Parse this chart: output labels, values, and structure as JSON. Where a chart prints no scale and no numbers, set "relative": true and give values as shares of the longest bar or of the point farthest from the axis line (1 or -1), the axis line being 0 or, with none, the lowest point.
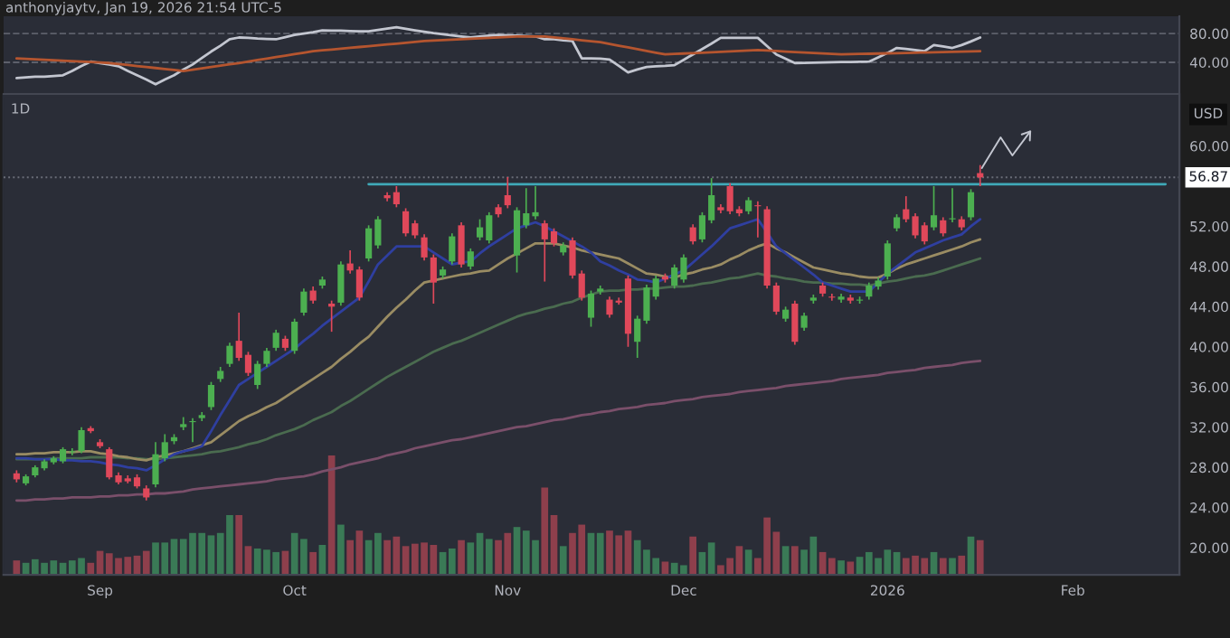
{
  "chart_data": [
    {
      "type": "line",
      "categories": [
        null,
        null,
        null,
        null,
        null,
        null,
        null,
        null,
        null,
        null,
        null,
        null,
        null,
        null,
        null,
        null,
        null,
        null,
        null,
        null,
        null,
        null,
        null,
        null,
        null,
        null,
        null,
        null,
        null,
        null,
        null,
        null,
        null,
        null,
        null,
        null,
        null,
        null,
        null,
        null,
        null,
        null,
        null,
        null,
        null,
        null,
        null,
        null,
        null,
        null,
        null,
        null,
        null,
        null,
        null,
        null,
        null,
        null,
        null,
        null,
        null,
        null,
        null,
        null,
        null,
        null,
        null,
        null,
        null,
        null,
        null,
        null,
        null,
        null,
        null,
        null,
        null,
        null,
        null,
        null,
        null,
        null,
        null,
        null,
        null,
        null,
        null,
        null,
        null,
        null,
        null,
        null,
        null,
        null,
        null,
        null,
        null,
        null,
        null,
        null,
        null,
        null,
        null,
        null,
        null,
        null,
        null,
        null,
        null,
        null,
        null,
        null,
        null,
        null,
        null,
        null,
        null,
        null,
        null,
        null,
        null,
        null,
        null,
        null,
        null,
        null
      ],
      "series": [
        {
          "color": "#c3c6d0",
          "values": [
            18,
            19,
            20,
            20,
            21,
            22,
            28,
            35,
            41,
            39,
            37,
            34.5,
            28,
            22,
            16,
            9.5,
            16,
            22,
            30,
            37,
            46,
            55,
            63,
            72,
            74.5,
            74,
            73,
            72.5,
            72,
            75,
            78,
            80,
            82,
            84.5,
            84,
            84,
            83.5,
            83,
            83,
            85,
            87,
            88.7,
            86.5,
            84.5,
            82.5,
            80.5,
            79,
            77.5,
            76,
            74.5,
            76,
            77,
            78,
            77.5,
            77,
            76.5,
            76,
            72,
            72,
            70.5,
            69.5,
            45.5,
            45.5,
            45,
            44,
            35,
            26,
            30,
            33.5,
            34.5,
            35,
            36,
            43.5,
            51,
            58.5,
            66,
            74,
            74,
            74,
            74,
            74,
            62.5,
            51,
            45,
            39,
            39.3,
            39.5,
            39.8,
            40,
            40.3,
            40.5,
            40.8,
            41,
            47,
            53,
            60,
            58.5,
            57,
            55.5,
            64,
            62,
            60,
            64,
            69,
            74.5,
            null,
            null,
            null,
            null,
            null,
            null,
            null,
            null,
            null,
            null,
            null,
            null,
            null,
            null,
            null,
            null,
            null,
            null,
            null,
            null,
            null
          ]
        },
        {
          "color": "#b5552f",
          "values": [
            45.5,
            44.9,
            44.2,
            43.6,
            42.9,
            42.3,
            41.6,
            41,
            40.3,
            39.7,
            39,
            37.6,
            36.3,
            34.9,
            33.5,
            32.1,
            30.8,
            29.4,
            28,
            29.8,
            31.7,
            33.5,
            35.3,
            37.2,
            39,
            41.1,
            43.1,
            45.2,
            47.3,
            49.3,
            51.4,
            53.4,
            55.5,
            56.7,
            57.8,
            59,
            60.2,
            61.3,
            62.5,
            63.7,
            64.8,
            66,
            67.2,
            68.3,
            69.5,
            70.2,
            70.8,
            71.5,
            72.1,
            72.8,
            73.4,
            74.1,
            74.7,
            75.4,
            76,
            76,
            76,
            76,
            74.7,
            73.3,
            72,
            70.7,
            69.3,
            68,
            65.6,
            63.1,
            60.7,
            58.3,
            55.9,
            53.4,
            51,
            51.6,
            52.2,
            52.8,
            53.4,
            54,
            54.6,
            55.2,
            55.8,
            56.4,
            57,
            56.3,
            55.7,
            55,
            54.3,
            53.7,
            53,
            52.3,
            51.7,
            51,
            51.3,
            51.6,
            51.9,
            52.2,
            52.5,
            52.8,
            53.1,
            53.4,
            53.7,
            54,
            54.3,
            54.6,
            54.9,
            55.2,
            55.5,
            null,
            null,
            null,
            null,
            null,
            null,
            null,
            null,
            null,
            null,
            null,
            null,
            null,
            null,
            null,
            null,
            null,
            null,
            null,
            null,
            null
          ]
        }
      ],
      "ylim": [
        -4,
        104
      ],
      "yticks": [
        {
          "value": 40,
          "label": "40.00"
        },
        {
          "value": 80,
          "label": "80.00"
        }
      ],
      "ref_lines": [
        {
          "axis": "y",
          "value": 40,
          "color": "#5d606b",
          "line_style": "dashed"
        },
        {
          "axis": "y",
          "value": 80,
          "color": "#5d606b",
          "line_style": "dashed"
        }
      ],
      "tick_labels": "y",
      "annotations": [
        "anthonyjaytv, Jan 19, 2026 21:54 UTC-5"
      ]
    },
    {
      "type": "candlestick",
      "subtitle": "1D",
      "annotations": [
        "USD"
      ],
      "categories": [
        null,
        null,
        null,
        null,
        null,
        null,
        null,
        null,
        null,
        "Sep",
        null,
        null,
        null,
        null,
        null,
        null,
        null,
        null,
        null,
        null,
        null,
        null,
        null,
        null,
        null,
        null,
        null,
        null,
        null,
        null,
        "Oct",
        null,
        null,
        null,
        null,
        null,
        null,
        null,
        null,
        null,
        null,
        null,
        null,
        null,
        null,
        null,
        null,
        null,
        null,
        null,
        null,
        null,
        null,
        "Nov",
        null,
        null,
        null,
        null,
        null,
        null,
        null,
        null,
        null,
        null,
        null,
        null,
        null,
        null,
        null,
        null,
        null,
        null,
        "Dec",
        null,
        null,
        null,
        null,
        null,
        null,
        null,
        null,
        null,
        null,
        null,
        null,
        null,
        null,
        null,
        null,
        null,
        null,
        null,
        null,
        null,
        "2026",
        null,
        null,
        null,
        null,
        null,
        null,
        null,
        null,
        null,
        null,
        null,
        null,
        null,
        null,
        null,
        null,
        null,
        null,
        null,
        "Feb",
        null,
        null,
        null,
        null,
        null,
        null,
        null,
        null,
        null,
        null,
        null
      ],
      "ohlc": [
        [
          27.4,
          27.7,
          26.5,
          26.8
        ],
        [
          26.4,
          27.3,
          26.2,
          27.1
        ],
        [
          27.2,
          28.2,
          27.0,
          28.0
        ],
        [
          27.9,
          28.8,
          27.7,
          28.6
        ],
        [
          28.5,
          29.1,
          28.3,
          28.9
        ],
        [
          28.6,
          30.0,
          28.4,
          29.8
        ],
        [
          29.5,
          29.9,
          29.2,
          29.6
        ],
        [
          29.6,
          32.0,
          29.4,
          31.7
        ],
        [
          31.9,
          32.1,
          31.4,
          31.6
        ],
        [
          30.5,
          30.8,
          29.9,
          30.1
        ],
        [
          29.8,
          30.0,
          26.8,
          27.0
        ],
        [
          27.2,
          27.5,
          26.3,
          26.5
        ],
        [
          26.9,
          27.2,
          26.4,
          26.6
        ],
        [
          27.0,
          27.3,
          25.9,
          26.1
        ],
        [
          25.9,
          26.2,
          24.7,
          25.0
        ],
        [
          26.3,
          30.5,
          26.0,
          29.3
        ],
        [
          28.9,
          31.3,
          28.6,
          30.5
        ],
        [
          30.6,
          31.3,
          30.3,
          31.0
        ],
        [
          32.0,
          33.0,
          31.7,
          32.3
        ],
        [
          32.5,
          32.9,
          30.5,
          32.6
        ],
        [
          32.9,
          33.5,
          32.6,
          33.2
        ],
        [
          34.0,
          36.5,
          33.7,
          36.2
        ],
        [
          36.8,
          38.0,
          36.5,
          37.6
        ],
        [
          38.3,
          40.4,
          38.0,
          40.1
        ],
        [
          40.6,
          43.4,
          38.6,
          38.9
        ],
        [
          39.2,
          39.5,
          37.1,
          37.4
        ],
        [
          36.2,
          38.6,
          35.8,
          38.3
        ],
        [
          38.3,
          39.9,
          38.0,
          39.6
        ],
        [
          39.9,
          41.7,
          39.6,
          41.4
        ],
        [
          40.8,
          41.1,
          39.6,
          39.9
        ],
        [
          39.6,
          42.8,
          39.3,
          42.5
        ],
        [
          43.4,
          45.8,
          43.1,
          45.5
        ],
        [
          45.6,
          46.0,
          44.3,
          44.6
        ],
        [
          46.1,
          47.0,
          45.8,
          46.7
        ],
        [
          44.3,
          44.6,
          41.5,
          44.0
        ],
        [
          44.4,
          48.5,
          44.1,
          48.2
        ],
        [
          48.3,
          49.6,
          47.3,
          47.6
        ],
        [
          47.7,
          48.0,
          44.6,
          44.9
        ],
        [
          48.8,
          52.1,
          48.5,
          51.8
        ],
        [
          50.1,
          53.0,
          49.8,
          52.7
        ],
        [
          55.1,
          55.4,
          54.5,
          54.8
        ],
        [
          55.4,
          56.0,
          53.9,
          54.2
        ],
        [
          53.5,
          53.8,
          51.0,
          51.3
        ],
        [
          52.3,
          52.6,
          50.8,
          51.1
        ],
        [
          50.9,
          51.2,
          48.6,
          48.9
        ],
        [
          48.9,
          49.2,
          44.3,
          46.4
        ],
        [
          47.1,
          48.0,
          46.8,
          47.7
        ],
        [
          48.5,
          51.3,
          48.2,
          51.0
        ],
        [
          52.1,
          52.4,
          47.9,
          48.2
        ],
        [
          48.0,
          49.8,
          47.7,
          49.5
        ],
        [
          50.9,
          52.7,
          50.6,
          51.9
        ],
        [
          50.6,
          53.4,
          50.3,
          53.1
        ],
        [
          53.9,
          54.2,
          52.9,
          53.2
        ],
        [
          55.1,
          56.9,
          53.8,
          54.1
        ],
        [
          49.1,
          53.9,
          47.4,
          53.6
        ],
        [
          52.1,
          55.8,
          51.8,
          53.3
        ],
        [
          53.0,
          56.0,
          52.7,
          53.4
        ],
        [
          52.3,
          52.6,
          46.5,
          50.7
        ],
        [
          51.5,
          51.8,
          50.0,
          50.3
        ],
        [
          49.4,
          50.4,
          49.1,
          50.1
        ],
        [
          50.6,
          50.9,
          46.8,
          47.1
        ],
        [
          47.3,
          47.6,
          44.6,
          44.9
        ],
        [
          42.9,
          45.6,
          42.0,
          45.3
        ],
        [
          45.5,
          46.1,
          45.2,
          45.8
        ],
        [
          44.7,
          45.0,
          42.9,
          43.2
        ],
        [
          44.6,
          44.9,
          44.2,
          44.4
        ],
        [
          46.8,
          47.1,
          40.0,
          41.3
        ],
        [
          40.5,
          43.1,
          38.9,
          42.8
        ],
        [
          42.6,
          46.2,
          42.3,
          45.9
        ],
        [
          45.0,
          47.1,
          44.7,
          46.8
        ],
        [
          47.0,
          47.3,
          46.4,
          46.7
        ],
        [
          46.1,
          48.2,
          45.8,
          47.9
        ],
        [
          46.7,
          49.2,
          46.4,
          48.9
        ],
        [
          51.9,
          52.2,
          50.2,
          50.5
        ],
        [
          50.7,
          53.4,
          50.4,
          53.1
        ],
        [
          52.6,
          56.8,
          52.3,
          55.1
        ],
        [
          53.9,
          54.2,
          53.3,
          53.6
        ],
        [
          56.0,
          56.3,
          53.2,
          53.5
        ],
        [
          53.7,
          54.0,
          53.0,
          53.3
        ],
        [
          53.5,
          54.9,
          53.2,
          54.6
        ],
        [
          54.1,
          54.5,
          50.9,
          54.0
        ],
        [
          53.7,
          54.0,
          45.8,
          46.1
        ],
        [
          46.1,
          46.4,
          43.2,
          43.5
        ],
        [
          42.8,
          44.0,
          42.5,
          43.7
        ],
        [
          44.3,
          44.6,
          40.2,
          40.5
        ],
        [
          41.9,
          43.4,
          41.6,
          43.1
        ],
        [
          44.6,
          45.2,
          44.3,
          44.9
        ],
        [
          46.1,
          46.4,
          45.0,
          45.3
        ],
        [
          45.0,
          45.3,
          44.6,
          44.9
        ],
        [
          44.7,
          45.3,
          44.4,
          45.0
        ],
        [
          44.9,
          45.2,
          44.3,
          44.6
        ],
        [
          44.6,
          45.0,
          44.3,
          44.7
        ],
        [
          45.0,
          46.4,
          44.7,
          46.1
        ],
        [
          46.0,
          46.9,
          45.7,
          46.6
        ],
        [
          47.0,
          50.6,
          46.7,
          50.3
        ],
        [
          51.8,
          53.2,
          51.5,
          52.9
        ],
        [
          53.7,
          55.0,
          52.4,
          52.7
        ],
        [
          53.0,
          53.3,
          50.8,
          51.1
        ],
        [
          52.1,
          52.4,
          50.2,
          50.5
        ],
        [
          51.9,
          56.0,
          51.6,
          53.1
        ],
        [
          52.6,
          52.9,
          51.0,
          51.3
        ],
        [
          52.7,
          55.8,
          52.4,
          52.8
        ],
        [
          52.7,
          53.0,
          51.6,
          51.9
        ],
        [
          52.9,
          55.7,
          52.6,
          55.4
        ],
        [
          57.3,
          58.1,
          56.0,
          56.87
        ],
        null,
        null,
        null,
        null,
        null,
        null,
        null,
        null,
        null,
        null,
        null,
        null,
        null,
        null,
        null,
        null,
        null,
        null,
        null,
        null,
        null
      ],
      "colors": [
        "#e0485a",
        "#4caf50",
        "#4caf50",
        "#4caf50",
        "#4caf50",
        "#4caf50",
        "#4caf50",
        "#4caf50",
        "#e0485a",
        "#e0485a",
        "#e0485a",
        "#e0485a",
        "#e0485a",
        "#e0485a",
        "#e0485a",
        "#4caf50",
        "#4caf50",
        "#4caf50",
        "#4caf50",
        "#4caf50",
        "#4caf50",
        "#4caf50",
        "#4caf50",
        "#4caf50",
        "#e0485a",
        "#e0485a",
        "#4caf50",
        "#4caf50",
        "#4caf50",
        "#e0485a",
        "#4caf50",
        "#4caf50",
        "#e0485a",
        "#4caf50",
        "#e0485a",
        "#4caf50",
        "#e0485a",
        "#e0485a",
        "#4caf50",
        "#4caf50",
        "#e0485a",
        "#e0485a",
        "#e0485a",
        "#e0485a",
        "#e0485a",
        "#e0485a",
        "#4caf50",
        "#4caf50",
        "#e0485a",
        "#4caf50",
        "#4caf50",
        "#4caf50",
        "#e0485a",
        "#e0485a",
        "#4caf50",
        "#4caf50",
        "#4caf50",
        "#e0485a",
        "#e0485a",
        "#4caf50",
        "#e0485a",
        "#e0485a",
        "#4caf50",
        "#4caf50",
        "#e0485a",
        "#e0485a",
        "#e0485a",
        "#4caf50",
        "#4caf50",
        "#4caf50",
        "#e0485a",
        "#4caf50",
        "#4caf50",
        "#e0485a",
        "#4caf50",
        "#4caf50",
        "#e0485a",
        "#e0485a",
        "#e0485a",
        "#4caf50",
        "#e0485a",
        "#e0485a",
        "#e0485a",
        "#4caf50",
        "#e0485a",
        "#4caf50",
        "#4caf50",
        "#e0485a",
        "#e0485a",
        "#4caf50",
        "#e0485a",
        "#4caf50",
        "#4caf50",
        "#4caf50",
        "#4caf50",
        "#4caf50",
        "#e0485a",
        "#e0485a",
        "#e0485a",
        "#4caf50",
        "#e0485a",
        "#4caf50",
        "#e0485a",
        "#4caf50",
        "#e0485a",
        null,
        null,
        null,
        null,
        null,
        null,
        null,
        null,
        null,
        null,
        null,
        null,
        null,
        null,
        null,
        null,
        null,
        null,
        null,
        null,
        null
      ],
      "series": [
        {
          "type": "line",
          "color": "#7a4f6a",
          "values": [
            24.7,
            24.7,
            24.8,
            24.8,
            24.9,
            24.9,
            25.0,
            25.0,
            25.0,
            25.1,
            25.1,
            25.2,
            25.2,
            25.3,
            25.3,
            25.4,
            25.4,
            25.5,
            25.6,
            25.8,
            25.9,
            26.0,
            26.1,
            26.2,
            26.3,
            26.4,
            26.5,
            26.6,
            26.8,
            26.9,
            27.0,
            27.1,
            27.3,
            27.6,
            27.8,
            28.0,
            28.3,
            28.5,
            28.7,
            28.9,
            29.2,
            29.4,
            29.6,
            29.9,
            30.1,
            30.3,
            30.5,
            30.7,
            30.8,
            31.0,
            31.2,
            31.4,
            31.6,
            31.8,
            32.0,
            32.1,
            32.3,
            32.5,
            32.7,
            32.8,
            33.0,
            33.2,
            33.3,
            33.5,
            33.6,
            33.8,
            33.9,
            34.0,
            34.2,
            34.3,
            34.4,
            34.6,
            34.7,
            34.8,
            35.0,
            35.1,
            35.2,
            35.3,
            35.5,
            35.6,
            35.7,
            35.8,
            35.9,
            36.1,
            36.2,
            36.3,
            36.4,
            36.5,
            36.6,
            36.8,
            36.9,
            37.0,
            37.1,
            37.2,
            37.4,
            37.5,
            37.6,
            37.7,
            37.9,
            38.0,
            38.1,
            38.2,
            38.4,
            38.5,
            38.6,
            null,
            null,
            null,
            null,
            null,
            null,
            null,
            null,
            null,
            null,
            null,
            null,
            null,
            null,
            null,
            null,
            null,
            null,
            null,
            null,
            null
          ]
        },
        {
          "type": "line",
          "color": "#4a6b4f",
          "values": [
            28.8,
            28.8,
            28.8,
            28.8,
            28.9,
            28.9,
            28.9,
            28.9,
            29.0,
            29.0,
            29.0,
            29.0,
            28.9,
            28.9,
            28.8,
            28.8,
            28.9,
            29.0,
            29.1,
            29.2,
            29.3,
            29.5,
            29.6,
            29.8,
            30.0,
            30.3,
            30.5,
            30.8,
            31.2,
            31.5,
            31.8,
            32.2,
            32.7,
            33.1,
            33.5,
            34.1,
            34.6,
            35.2,
            35.8,
            36.4,
            37.0,
            37.5,
            38.0,
            38.5,
            39.0,
            39.5,
            39.9,
            40.3,
            40.6,
            41.0,
            41.4,
            41.8,
            42.2,
            42.6,
            43.0,
            43.3,
            43.5,
            43.8,
            44.0,
            44.3,
            44.5,
            44.9,
            45.2,
            45.5,
            45.6,
            45.6,
            45.7,
            45.7,
            45.8,
            45.8,
            45.9,
            46.0,
            46.0,
            46.1,
            46.3,
            46.4,
            46.6,
            46.8,
            46.9,
            47.1,
            47.3,
            47.1,
            47.0,
            46.8,
            46.7,
            46.5,
            46.4,
            46.4,
            46.3,
            46.3,
            46.2,
            46.2,
            46.1,
            46.3,
            46.5,
            46.6,
            46.8,
            47.0,
            47.1,
            47.3,
            47.6,
            47.9,
            48.2,
            48.5,
            48.8,
            null,
            null,
            null,
            null,
            null,
            null,
            null,
            null,
            null,
            null,
            null,
            null,
            null,
            null,
            null,
            null,
            null,
            null,
            null,
            null,
            null
          ]
        },
        {
          "type": "line",
          "color": "#9a8c63",
          "values": [
            29.3,
            29.3,
            29.4,
            29.4,
            29.5,
            29.5,
            29.5,
            29.6,
            29.6,
            29.4,
            29.3,
            29.1,
            29.0,
            28.8,
            28.7,
            29.0,
            29.2,
            29.4,
            29.6,
            29.9,
            30.2,
            30.5,
            31.2,
            31.9,
            32.6,
            33.1,
            33.5,
            34.0,
            34.4,
            35.0,
            35.6,
            36.2,
            36.8,
            37.4,
            38.0,
            38.8,
            39.5,
            40.3,
            41.0,
            42.0,
            43.0,
            43.9,
            44.7,
            45.6,
            46.4,
            46.6,
            46.8,
            47.0,
            47.2,
            47.3,
            47.5,
            47.6,
            48.2,
            48.8,
            49.3,
            49.8,
            50.3,
            50.3,
            50.3,
            50.1,
            49.9,
            49.6,
            49.4,
            49.2,
            49.0,
            48.8,
            48.3,
            47.8,
            47.3,
            47.2,
            47.0,
            46.9,
            47.2,
            47.4,
            47.7,
            47.9,
            48.2,
            48.7,
            49.1,
            49.6,
            50.0,
            50.3,
            49.8,
            49.4,
            48.9,
            48.4,
            47.9,
            47.7,
            47.5,
            47.3,
            47.2,
            47.0,
            46.9,
            46.9,
            47.3,
            47.8,
            48.2,
            48.5,
            48.8,
            49.1,
            49.4,
            49.7,
            50.0,
            50.4,
            50.7,
            null,
            null,
            null,
            null,
            null,
            null,
            null,
            null,
            null,
            null,
            null,
            null,
            null,
            null,
            null,
            null,
            null,
            null,
            null,
            null,
            null
          ]
        },
        {
          "type": "line",
          "color": "#2f3fa0",
          "values": [
            28.9,
            28.9,
            28.8,
            28.8,
            28.8,
            28.7,
            28.7,
            28.6,
            28.6,
            28.5,
            28.3,
            28.2,
            28.0,
            27.9,
            27.7,
            28.2,
            28.8,
            29.3,
            29.6,
            29.8,
            30.1,
            31.6,
            33.2,
            34.7,
            36.2,
            36.8,
            37.4,
            38.0,
            38.6,
            39.2,
            39.8,
            40.6,
            41.3,
            42.1,
            42.8,
            43.5,
            44.2,
            44.9,
            46.5,
            48.2,
            49.1,
            50.0,
            50.0,
            50.0,
            50.0,
            49.4,
            48.8,
            48.2,
            48.4,
            48.5,
            49.3,
            50.0,
            50.6,
            51.2,
            51.8,
            52.1,
            52.4,
            52.0,
            51.5,
            51.0,
            50.5,
            50.0,
            49.4,
            48.5,
            48.1,
            47.6,
            47.2,
            46.7,
            46.6,
            46.4,
            46.8,
            47.2,
            47.6,
            48.4,
            49.2,
            50.0,
            50.9,
            51.8,
            52.1,
            52.4,
            52.7,
            51.4,
            50.0,
            49.3,
            48.6,
            47.9,
            47.2,
            46.4,
            46.1,
            45.8,
            45.5,
            45.5,
            45.5,
            46.4,
            47.3,
            48.0,
            48.7,
            49.4,
            49.8,
            50.2,
            50.6,
            50.9,
            51.2,
            52.0,
            52.7,
            null,
            null,
            null,
            null,
            null,
            null,
            null,
            null,
            null,
            null,
            null,
            null,
            null,
            null,
            null,
            null,
            null,
            null,
            null,
            null,
            null
          ]
        },
        {
          "type": "line",
          "color": "#3fa9b8",
          "values": [
            null,
            null,
            null,
            null,
            null,
            null,
            null,
            null,
            null,
            null,
            null,
            null,
            null,
            null,
            null,
            null,
            null,
            null,
            null,
            null,
            null,
            null,
            null,
            null,
            null,
            null,
            null,
            null,
            null,
            null,
            null,
            null,
            null,
            null,
            null,
            null,
            null,
            null,
            56.2,
            56.2,
            56.2,
            56.2,
            56.2,
            56.2,
            56.2,
            56.2,
            56.2,
            56.2,
            56.2,
            56.2,
            56.2,
            56.2,
            56.2,
            56.2,
            56.2,
            56.2,
            56.2,
            56.2,
            56.2,
            56.2,
            56.2,
            56.2,
            56.2,
            56.2,
            56.2,
            56.2,
            56.2,
            56.2,
            56.2,
            56.2,
            56.2,
            56.2,
            56.2,
            56.2,
            56.2,
            56.2,
            56.2,
            56.2,
            56.2,
            56.2,
            56.2,
            56.2,
            56.2,
            56.2,
            56.2,
            56.2,
            56.2,
            56.2,
            56.2,
            56.2,
            56.2,
            56.2,
            56.2,
            56.2,
            56.2,
            56.2,
            56.2,
            56.2,
            56.2,
            56.2,
            56.2,
            56.2,
            56.2,
            56.2,
            56.2,
            56.2,
            56.2,
            56.2,
            56.2,
            56.2,
            56.2,
            56.2,
            56.2,
            56.2,
            56.2,
            56.2,
            56.2,
            56.2,
            56.2,
            56.2,
            56.2,
            56.2,
            56.2,
            56.2,
            56.2,
            null
          ]
        }
      ],
      "ylim": [
        17.3,
        65.0
      ],
      "yticks": [
        {
          "value": 20,
          "label": "20.00"
        },
        {
          "value": 24,
          "label": "24.00"
        },
        {
          "value": 28,
          "label": "28.00"
        },
        {
          "value": 32,
          "label": "32.00"
        },
        {
          "value": 36,
          "label": "36.00"
        },
        {
          "value": 40,
          "label": "40.00"
        },
        {
          "value": 44,
          "label": "44.00"
        },
        {
          "value": 48,
          "label": "48.00"
        },
        {
          "value": 52,
          "label": "52.00"
        },
        {
          "value": 60,
          "label": "60.00"
        }
      ],
      "ref_lines": [
        {
          "axis": "y",
          "value": 56.87,
          "label": "56.87",
          "color": "#6a6d78",
          "line_style": "dotted"
        }
      ]
    },
    {
      "type": "bar",
      "relative": true,
      "tick_labels": false,
      "categories": [
        null,
        null,
        null,
        null,
        null,
        null,
        null,
        null,
        null,
        null,
        null,
        null,
        null,
        null,
        null,
        null,
        null,
        null,
        null,
        null,
        null,
        null,
        null,
        null,
        null,
        null,
        null,
        null,
        null,
        null,
        null,
        null,
        null,
        null,
        null,
        null,
        null,
        null,
        null,
        null,
        null,
        null,
        null,
        null,
        null,
        null,
        null,
        null,
        null,
        null,
        null,
        null,
        null,
        null,
        null,
        null,
        null,
        null,
        null,
        null,
        null,
        null,
        null,
        null,
        null,
        null,
        null,
        null,
        null,
        null,
        null,
        null,
        null,
        null,
        null,
        null,
        null,
        null,
        null,
        null,
        null,
        null,
        null,
        null,
        null,
        null,
        null,
        null,
        null,
        null,
        null,
        null,
        null,
        null,
        null,
        null,
        null,
        null,
        null,
        null,
        null,
        null,
        null,
        null,
        null,
        null,
        null,
        null,
        null,
        null,
        null,
        null,
        null,
        null,
        null,
        null,
        null,
        null,
        null,
        null,
        null,
        null,
        null,
        null,
        null,
        null
      ],
      "values": [
        0.12,
        0.1,
        0.13,
        0.1,
        0.12,
        0.1,
        0.12,
        0.14,
        0.1,
        0.2,
        0.18,
        0.14,
        0.15,
        0.16,
        0.2,
        0.27,
        0.27,
        0.3,
        0.3,
        0.35,
        0.35,
        0.33,
        0.35,
        0.5,
        0.5,
        0.24,
        0.22,
        0.21,
        0.19,
        0.2,
        0.35,
        0.3,
        0.19,
        0.25,
        1.0,
        0.42,
        0.29,
        0.37,
        0.29,
        0.35,
        0.29,
        0.32,
        0.24,
        0.26,
        0.27,
        0.25,
        0.19,
        0.22,
        0.29,
        0.27,
        0.35,
        0.3,
        0.29,
        0.35,
        0.4,
        0.37,
        0.29,
        0.73,
        0.5,
        0.24,
        0.35,
        0.42,
        0.35,
        0.35,
        0.37,
        0.33,
        0.37,
        0.29,
        0.21,
        0.14,
        0.11,
        0.1,
        0.08,
        0.32,
        0.19,
        0.27,
        0.08,
        0.14,
        0.24,
        0.21,
        0.14,
        0.48,
        0.36,
        0.24,
        0.24,
        0.21,
        0.32,
        0.19,
        0.14,
        0.12,
        0.11,
        0.15,
        0.19,
        0.14,
        0.21,
        0.19,
        0.14,
        0.16,
        0.14,
        0.19,
        0.14,
        0.14,
        0.16,
        0.32,
        0.29,
        null,
        null,
        null,
        null,
        null,
        null,
        null,
        null,
        null,
        null,
        null,
        null,
        null,
        null,
        null,
        null,
        null,
        null,
        null,
        null,
        null
      ],
      "colors": [
        "#8e3f4c",
        "#3a7a56",
        "#3a7a56",
        "#3a7a56",
        "#3a7a56",
        "#3a7a56",
        "#3a7a56",
        "#3a7a56",
        "#8e3f4c",
        "#8e3f4c",
        "#8e3f4c",
        "#8e3f4c",
        "#8e3f4c",
        "#8e3f4c",
        "#8e3f4c",
        "#3a7a56",
        "#3a7a56",
        "#3a7a56",
        "#3a7a56",
        "#3a7a56",
        "#3a7a56",
        "#3a7a56",
        "#3a7a56",
        "#3a7a56",
        "#8e3f4c",
        "#8e3f4c",
        "#3a7a56",
        "#3a7a56",
        "#3a7a56",
        "#8e3f4c",
        "#3a7a56",
        "#3a7a56",
        "#8e3f4c",
        "#3a7a56",
        "#8e3f4c",
        "#3a7a56",
        "#8e3f4c",
        "#8e3f4c",
        "#3a7a56",
        "#3a7a56",
        "#8e3f4c",
        "#8e3f4c",
        "#8e3f4c",
        "#8e3f4c",
        "#8e3f4c",
        "#8e3f4c",
        "#3a7a56",
        "#3a7a56",
        "#8e3f4c",
        "#3a7a56",
        "#3a7a56",
        "#3a7a56",
        "#8e3f4c",
        "#8e3f4c",
        "#3a7a56",
        "#3a7a56",
        "#3a7a56",
        "#8e3f4c",
        "#8e3f4c",
        "#3a7a56",
        "#8e3f4c",
        "#8e3f4c",
        "#3a7a56",
        "#3a7a56",
        "#8e3f4c",
        "#8e3f4c",
        "#8e3f4c",
        "#3a7a56",
        "#3a7a56",
        "#3a7a56",
        "#8e3f4c",
        "#3a7a56",
        "#3a7a56",
        "#8e3f4c",
        "#3a7a56",
        "#3a7a56",
        "#8e3f4c",
        "#8e3f4c",
        "#8e3f4c",
        "#3a7a56",
        "#8e3f4c",
        "#8e3f4c",
        "#8e3f4c",
        "#3a7a56",
        "#8e3f4c",
        "#3a7a56",
        "#3a7a56",
        "#8e3f4c",
        "#8e3f4c",
        "#3a7a56",
        "#8e3f4c",
        "#3a7a56",
        "#3a7a56",
        "#3a7a56",
        "#3a7a56",
        "#3a7a56",
        "#8e3f4c",
        "#8e3f4c",
        "#8e3f4c",
        "#3a7a56",
        "#8e3f4c",
        "#3a7a56",
        "#8e3f4c",
        "#3a7a56",
        "#8e3f4c",
        null,
        null,
        null,
        null,
        null,
        null,
        null,
        null,
        null,
        null,
        null,
        null,
        null,
        null,
        null,
        null,
        null,
        null,
        null,
        null,
        null
      ]
    }
  ]
}
